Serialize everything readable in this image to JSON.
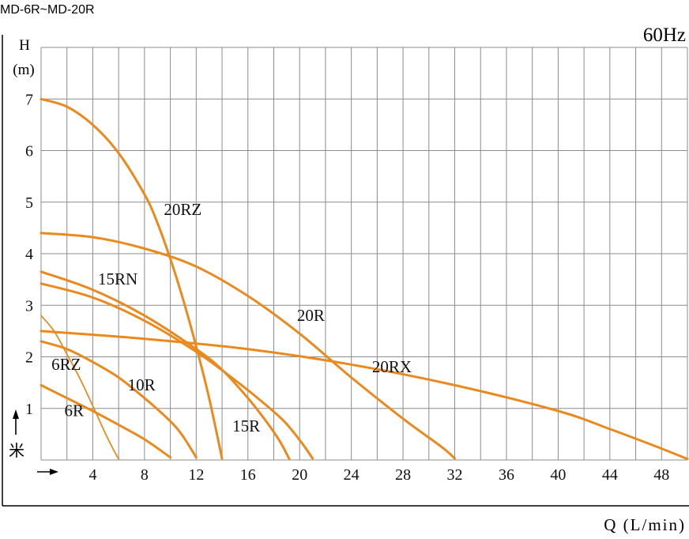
{
  "doc_title": "MD-6R~MD-20R",
  "freq_label": "60Hz",
  "chart_data": {
    "type": "line",
    "title": "",
    "xlabel": "Q (L/min)",
    "ylabel_top": "H",
    "ylabel_unit": "(m)",
    "ylabel_cjk": "米",
    "xlim": [
      0,
      50
    ],
    "ylim": [
      0,
      8
    ],
    "x_ticks": [
      4,
      8,
      12,
      16,
      20,
      24,
      28,
      32,
      36,
      40,
      44,
      48
    ],
    "y_ticks": [
      1,
      2,
      3,
      4,
      5,
      6,
      7
    ],
    "grid": true,
    "series": [
      {
        "name": "6RZ",
        "x": [
          0,
          1,
          2,
          3,
          4,
          5,
          5.6,
          6.0
        ],
        "y": [
          2.8,
          2.5,
          2.05,
          1.58,
          1.05,
          0.5,
          0.2,
          0.02
        ],
        "thin": true
      },
      {
        "name": "6R",
        "x": [
          0,
          2,
          4,
          6,
          8,
          10
        ],
        "y": [
          1.45,
          1.2,
          0.95,
          0.68,
          0.4,
          0.05
        ]
      },
      {
        "name": "10R",
        "x": [
          0,
          2,
          4,
          6,
          8,
          10,
          11,
          12
        ],
        "y": [
          2.3,
          2.15,
          1.9,
          1.6,
          1.2,
          0.75,
          0.45,
          0.05
        ]
      },
      {
        "name": "15RN",
        "x": [
          0,
          4,
          8,
          12,
          14,
          16,
          17.5,
          18.5,
          19.2
        ],
        "y": [
          3.65,
          3.3,
          2.8,
          2.15,
          1.75,
          1.2,
          0.72,
          0.35,
          0.02
        ]
      },
      {
        "name": "15R",
        "x": [
          0,
          4,
          8,
          12,
          15,
          17,
          18.8,
          20.2,
          21.0
        ],
        "y": [
          3.42,
          3.15,
          2.7,
          2.1,
          1.55,
          1.15,
          0.75,
          0.32,
          0.03
        ]
      },
      {
        "name": "20RZ",
        "x": [
          0,
          2,
          4,
          6,
          8,
          9,
          10,
          11,
          12,
          13,
          14
        ],
        "y": [
          7.0,
          6.85,
          6.5,
          5.95,
          5.15,
          4.6,
          3.9,
          3.1,
          2.2,
          1.2,
          0.03
        ]
      },
      {
        "name": "20R",
        "x": [
          0,
          4,
          8,
          12,
          16,
          20,
          24,
          28,
          31,
          32
        ],
        "y": [
          4.4,
          4.32,
          4.1,
          3.75,
          3.18,
          2.45,
          1.6,
          0.8,
          0.25,
          0.03
        ]
      },
      {
        "name": "20RX",
        "x": [
          0,
          8,
          16,
          24,
          32,
          40,
          44,
          48,
          50
        ],
        "y": [
          2.5,
          2.35,
          2.15,
          1.85,
          1.45,
          0.95,
          0.6,
          0.22,
          0.02
        ]
      }
    ],
    "annotations": [
      "20RZ",
      "15RN",
      "20R",
      "20RX",
      "6RZ",
      "10R",
      "6R",
      "15R"
    ]
  }
}
